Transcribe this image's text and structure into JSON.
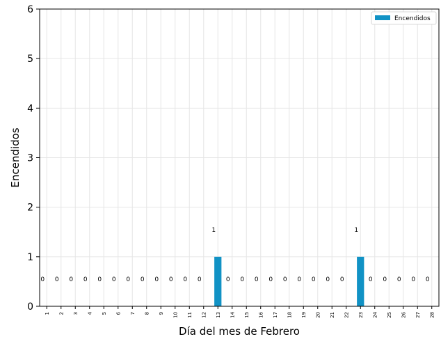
{
  "chart_data": {
    "type": "bar",
    "xlabel": "Día del mes de Febrero",
    "ylabel": "Encendidos",
    "ylim": [
      0,
      6
    ],
    "yticks": [
      0,
      1,
      2,
      3,
      4,
      5,
      6
    ],
    "categories": [
      "1",
      "2",
      "3",
      "4",
      "5",
      "6",
      "7",
      "8",
      "9",
      "10",
      "11",
      "12",
      "13",
      "14",
      "15",
      "16",
      "17",
      "18",
      "19",
      "20",
      "21",
      "22",
      "23",
      "24",
      "25",
      "26",
      "27",
      "28"
    ],
    "series": [
      {
        "name": "Encendidos",
        "color": "#1192c5",
        "values": [
          0,
          0,
          0,
          0,
          0,
          0,
          0,
          0,
          0,
          0,
          0,
          0,
          1,
          0,
          0,
          0,
          0,
          0,
          0,
          0,
          0,
          0,
          1,
          0,
          0,
          0,
          0,
          0
        ]
      }
    ],
    "data_labels": [
      "0",
      "0",
      "0",
      "0",
      "0",
      "0",
      "0",
      "0",
      "0",
      "0",
      "0",
      "0",
      "1",
      "0",
      "0",
      "0",
      "0",
      "0",
      "0",
      "0",
      "0",
      "0",
      "1",
      "0",
      "0",
      "0",
      "0",
      "0"
    ],
    "grid": true,
    "legend_position": "top-right"
  }
}
